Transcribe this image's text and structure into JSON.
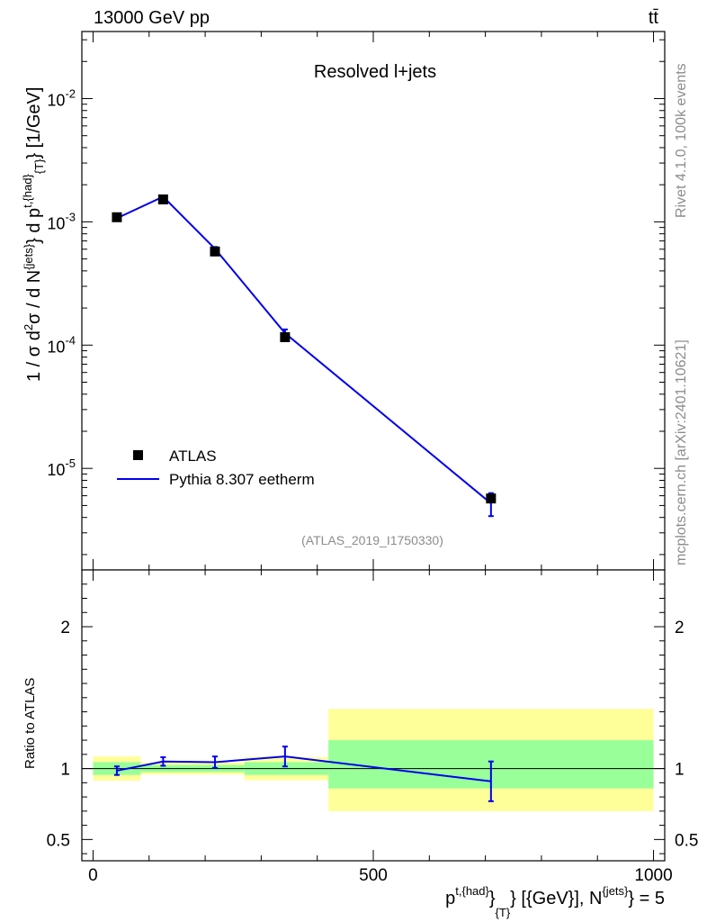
{
  "header": {
    "left": "13000 GeV pp",
    "right": "tt̄"
  },
  "side_labels": {
    "rivet": "Rivet 4.1.0,  100k events",
    "mcplots": "mcplots.cern.ch [arXiv:2401.10621]"
  },
  "chart_data": [
    {
      "type": "line",
      "title": "Resolved l+jets",
      "ylabel": "1 / σ d²σ / d N^{jets} d p^{t,{had}}_{T} [1/GeV]",
      "ylabel_parts": {
        "a": "1 / σ d",
        "b": "2",
        "c": "σ / d N",
        "d": "{jets}",
        "e": "} d p",
        "f": "t,{had}",
        "g": "} [1/GeV]",
        "h": "{T}"
      },
      "yscale": "log",
      "ylim": [
        1.5e-06,
        0.035
      ],
      "xlim": [
        -20,
        1020
      ],
      "y_tick_labels": [
        {
          "base": "10",
          "exp": "-2",
          "value": 0.01
        },
        {
          "base": "10",
          "exp": "-3",
          "value": 0.001
        },
        {
          "base": "10",
          "exp": "-4",
          "value": 0.0001
        },
        {
          "base": "10",
          "exp": "-5",
          "value": 1e-05
        }
      ],
      "watermark": "(ATLAS_2019_I1750330)",
      "legend": {
        "position": "bottom-left",
        "entries": [
          "ATLAS",
          "Pythia 8.307 eetherm"
        ]
      },
      "series": [
        {
          "name": "ATLAS",
          "style": "markers",
          "color": "#000000",
          "x": [
            42.5,
            125,
            217.5,
            342.5,
            710
          ],
          "y": [
            0.00109,
            0.00152,
            0.000575,
            0.000116,
            5.7e-06
          ],
          "yerr_low": [
            3e-05,
            4e-05,
            2e-05,
            6e-06,
            4e-07
          ],
          "yerr_high": [
            3e-05,
            4e-05,
            2e-05,
            6e-06,
            4e-07
          ]
        },
        {
          "name": "Pythia 8.307 eetherm",
          "style": "line",
          "color": "#0000ee",
          "x": [
            42.5,
            125,
            217.5,
            342.5,
            710
          ],
          "y": [
            0.00107,
            0.0016,
            0.000605,
            0.000125,
            5.2e-06
          ],
          "yerr_low": [
            2e-05,
            3e-05,
            2e-05,
            9e-06,
            1.1e-06
          ],
          "yerr_high": [
            2e-05,
            3e-05,
            2e-05,
            9e-06,
            1.1e-06
          ]
        }
      ]
    },
    {
      "type": "line",
      "ylabel": "Ratio to ATLAS",
      "xlabel": "p^{t,{had}}_{T} [{GeV}], N^{jets} = 5",
      "xlabel_parts": {
        "a": "p",
        "b": "t,{had}",
        "c": "}",
        "d": "{T}",
        "e": "} [{GeV}], N",
        "f": "{jets}",
        "g": "} = 5"
      },
      "ylim": [
        0.35,
        2.4
      ],
      "xlim": [
        -20,
        1020
      ],
      "x_tick_labels": [
        "0",
        "500",
        "1000"
      ],
      "x_tick_values": [
        0,
        500,
        1000
      ],
      "y_tick_labels": [
        "2",
        "1",
        "0.5"
      ],
      "y_tick_values": [
        2,
        1,
        0.5
      ],
      "bands": {
        "colors": {
          "stat": "#99ff99",
          "total": "#ffff99"
        },
        "bins": [
          {
            "x_low": 0,
            "x_high": 85,
            "stat_low": 0.955,
            "stat_high": 1.045,
            "total_low": 0.915,
            "total_high": 1.085
          },
          {
            "x_low": 85,
            "x_high": 270,
            "stat_low": 0.975,
            "stat_high": 1.025,
            "total_low": 0.958,
            "total_high": 1.042
          },
          {
            "x_low": 270,
            "x_high": 420,
            "stat_low": 0.955,
            "stat_high": 1.045,
            "total_low": 0.918,
            "total_high": 1.08
          },
          {
            "x_low": 420,
            "x_high": 1000,
            "stat_low": 0.86,
            "stat_high": 1.2,
            "total_low": 0.7,
            "total_high": 1.42
          }
        ]
      },
      "series": [
        {
          "name": "Pythia 8.307 eetherm / ATLAS",
          "color": "#0000ee",
          "x": [
            42.5,
            125,
            217.5,
            342.5,
            710
          ],
          "y": [
            0.985,
            1.05,
            1.045,
            1.085,
            0.91
          ],
          "yerr_low": [
            0.03,
            0.03,
            0.04,
            0.07,
            0.14
          ],
          "yerr_high": [
            0.03,
            0.03,
            0.04,
            0.07,
            0.14
          ]
        }
      ]
    }
  ]
}
